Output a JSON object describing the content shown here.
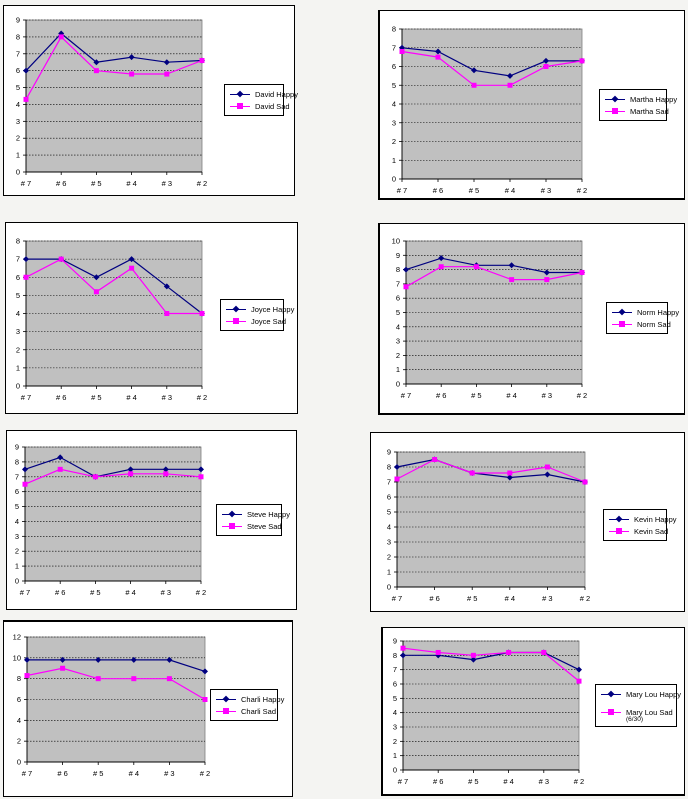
{
  "colors": {
    "happy": "#000080",
    "sad": "#ff00ff",
    "plot_bg": "#c0c0c0"
  },
  "chart_data": [
    {
      "type": "line",
      "categories": [
        "# 7",
        "# 6",
        "# 5",
        "# 4",
        "# 3",
        "# 2"
      ],
      "ylim": [
        0,
        9
      ],
      "yticks": [
        0,
        1,
        2,
        3,
        4,
        5,
        6,
        7,
        8,
        9
      ],
      "series": [
        {
          "name": "David Happy",
          "values": [
            6,
            8.2,
            6.5,
            6.8,
            6.5,
            6.6
          ]
        },
        {
          "name": "David Sad",
          "values": [
            4.3,
            8,
            6,
            5.8,
            5.8,
            6.6
          ]
        }
      ]
    },
    {
      "type": "line",
      "categories": [
        "# 7",
        "# 6",
        "# 5",
        "# 4",
        "# 3",
        "# 2"
      ],
      "ylim": [
        0,
        8
      ],
      "yticks": [
        0,
        1,
        2,
        3,
        4,
        5,
        6,
        7,
        8
      ],
      "series": [
        {
          "name": "Martha Happy",
          "values": [
            7,
            6.8,
            5.8,
            5.5,
            6.3,
            6.3
          ]
        },
        {
          "name": "Martha Sad",
          "values": [
            6.8,
            6.5,
            5,
            5,
            6,
            6.3
          ]
        }
      ]
    },
    {
      "type": "line",
      "categories": [
        "# 7",
        "# 6",
        "# 5",
        "# 4",
        "# 3",
        "# 2"
      ],
      "ylim": [
        0,
        8
      ],
      "yticks": [
        0,
        1,
        2,
        3,
        4,
        5,
        6,
        7,
        8
      ],
      "series": [
        {
          "name": "Joyce Happy",
          "values": [
            7,
            7,
            6,
            7,
            5.5,
            4
          ]
        },
        {
          "name": "Joyce Sad",
          "values": [
            6,
            7,
            5.2,
            6.5,
            4,
            4
          ]
        }
      ]
    },
    {
      "type": "line",
      "categories": [
        "# 7",
        "# 6",
        "# 5",
        "# 4",
        "# 3",
        "# 2"
      ],
      "ylim": [
        0,
        10
      ],
      "yticks": [
        0,
        1,
        2,
        3,
        4,
        5,
        6,
        7,
        8,
        9,
        10
      ],
      "series": [
        {
          "name": "Norm Happy",
          "values": [
            8,
            8.8,
            8.3,
            8.3,
            7.8,
            7.8
          ]
        },
        {
          "name": "Norm Sad",
          "values": [
            6.8,
            8.2,
            8.2,
            7.3,
            7.3,
            7.8
          ]
        }
      ]
    },
    {
      "type": "line",
      "categories": [
        "# 7",
        "# 6",
        "# 5",
        "# 4",
        "# 3",
        "# 2"
      ],
      "ylim": [
        0,
        9
      ],
      "yticks": [
        0,
        1,
        2,
        3,
        4,
        5,
        6,
        7,
        8,
        9
      ],
      "series": [
        {
          "name": "Steve Happy",
          "values": [
            7.5,
            8.3,
            7,
            7.5,
            7.5,
            7.5
          ]
        },
        {
          "name": "Steve Sad",
          "values": [
            6.5,
            7.5,
            7,
            7.2,
            7.2,
            7
          ]
        }
      ]
    },
    {
      "type": "line",
      "categories": [
        "# 7",
        "# 6",
        "# 5",
        "# 4",
        "# 3",
        "# 2"
      ],
      "ylim": [
        0,
        9
      ],
      "yticks": [
        0,
        1,
        2,
        3,
        4,
        5,
        6,
        7,
        8,
        9
      ],
      "series": [
        {
          "name": "Kevin Happy",
          "values": [
            8,
            8.5,
            7.6,
            7.3,
            7.5,
            7
          ]
        },
        {
          "name": "Kevin Sad",
          "values": [
            7.2,
            8.5,
            7.6,
            7.6,
            8,
            7
          ]
        }
      ]
    },
    {
      "type": "line",
      "categories": [
        "# 7",
        "# 6",
        "# 5",
        "# 4",
        "# 3",
        "# 2"
      ],
      "ylim": [
        0,
        12
      ],
      "yticks": [
        0,
        2,
        4,
        6,
        8,
        10,
        12
      ],
      "series": [
        {
          "name": "Charli Happy",
          "values": [
            9.8,
            9.8,
            9.8,
            9.8,
            9.8,
            8.7
          ]
        },
        {
          "name": "Charli Sad",
          "values": [
            8.3,
            9,
            8,
            8,
            8,
            6
          ]
        }
      ]
    },
    {
      "type": "line",
      "categories": [
        "# 7",
        "# 6",
        "# 5",
        "# 4",
        "# 3",
        "# 2"
      ],
      "ylim": [
        0,
        9
      ],
      "yticks": [
        0,
        1,
        2,
        3,
        4,
        5,
        6,
        7,
        8,
        9
      ],
      "series": [
        {
          "name": "Mary Lou Happy",
          "values": [
            8,
            8,
            7.7,
            8.2,
            8.2,
            7
          ]
        },
        {
          "name": "Mary Lou Sad",
          "values": [
            8.5,
            8.2,
            8,
            8.2,
            8.2,
            6.2
          ]
        }
      ],
      "legend_note": "(6/30)"
    }
  ]
}
